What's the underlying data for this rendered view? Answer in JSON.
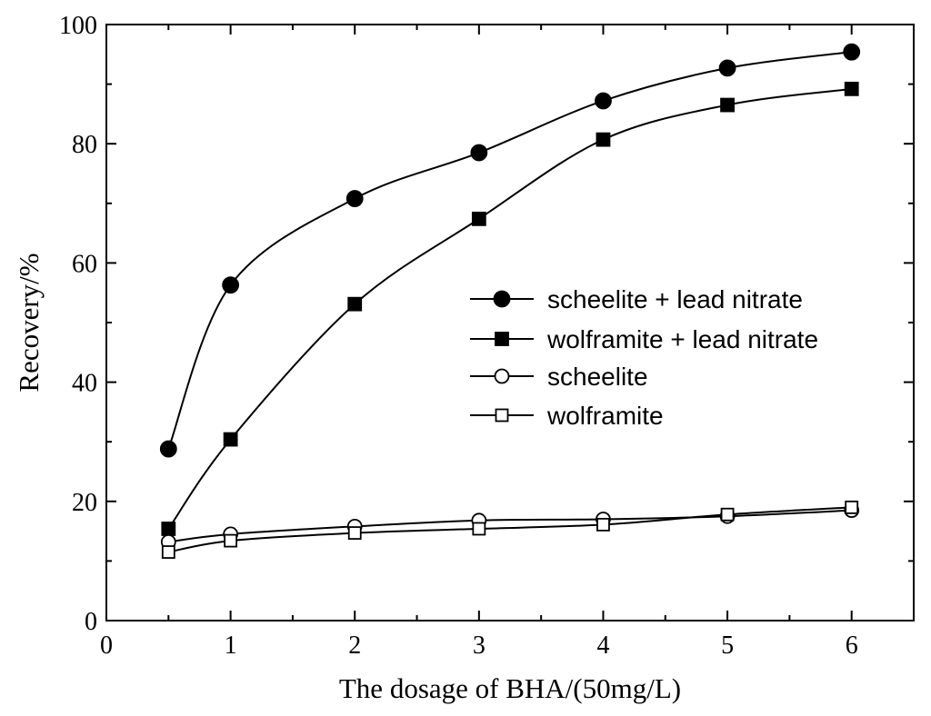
{
  "chart_data": {
    "type": "line",
    "title": "",
    "xlabel": "The dosage of BHA/(50mg/L)",
    "ylabel": "Recovery/%",
    "xlim": [
      0,
      6.5
    ],
    "ylim": [
      0,
      100
    ],
    "xticks": [
      0,
      1,
      2,
      3,
      4,
      5,
      6
    ],
    "yticks": [
      0,
      20,
      40,
      60,
      80,
      100
    ],
    "grid": false,
    "legend_position": "center-right",
    "series": [
      {
        "name": "scheelite + lead nitrate",
        "marker": "circle-filled",
        "x": [
          0.5,
          1,
          2,
          3,
          4,
          5,
          6
        ],
        "y": [
          28.8,
          56.3,
          70.8,
          78.5,
          87.2,
          92.7,
          95.4
        ]
      },
      {
        "name": "wolframite + lead nitrate",
        "marker": "square-filled",
        "x": [
          0.5,
          1,
          2,
          3,
          4,
          5,
          6
        ],
        "y": [
          15.4,
          30.4,
          53.1,
          67.4,
          80.7,
          86.5,
          89.2
        ]
      },
      {
        "name": "scheelite",
        "marker": "circle-open",
        "x": [
          0.5,
          1,
          2,
          3,
          4,
          5,
          6
        ],
        "y": [
          13.2,
          14.5,
          15.8,
          16.8,
          17.0,
          17.5,
          18.5
        ]
      },
      {
        "name": "wolframite",
        "marker": "square-open",
        "x": [
          0.5,
          1,
          2,
          3,
          4,
          5,
          6
        ],
        "y": [
          11.5,
          13.4,
          14.7,
          15.4,
          16.1,
          17.8,
          19.0
        ]
      }
    ]
  }
}
